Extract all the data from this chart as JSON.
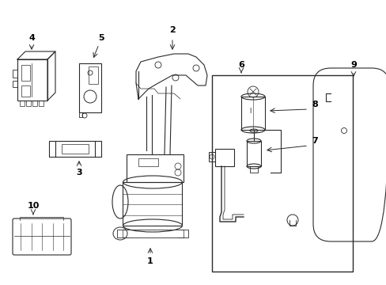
{
  "bg_color": "#ffffff",
  "line_color": "#2a2a2a",
  "text_color": "#000000",
  "fig_width": 4.89,
  "fig_height": 3.6,
  "dpi": 100
}
